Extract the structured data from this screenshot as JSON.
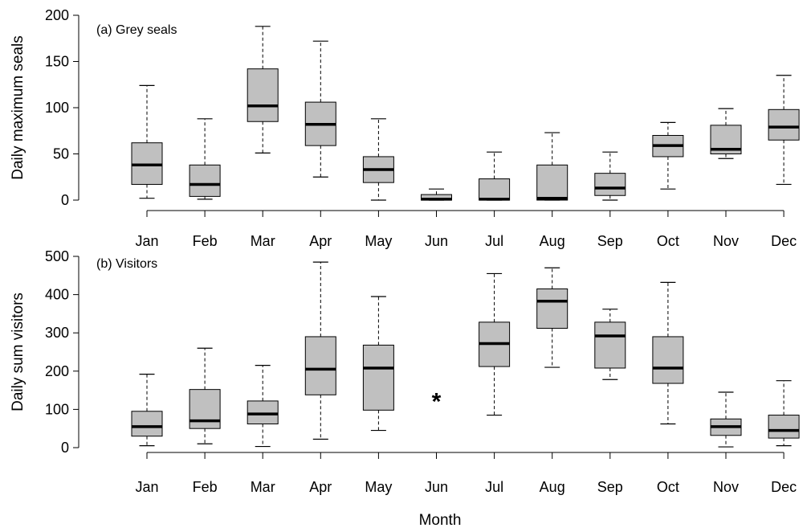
{
  "figure": {
    "xlabel": "Month",
    "colors": {
      "box_fill": "#c0c0c0",
      "stroke": "#000000",
      "background": "#ffffff"
    }
  },
  "chart_data": [
    {
      "type": "boxplot",
      "panel_label": "(a) Grey seals",
      "ylabel": "Daily maximum seals",
      "xlabel": "",
      "ylim": [
        0,
        200
      ],
      "yticks": [
        0,
        50,
        100,
        150,
        200
      ],
      "categories": [
        "Jan",
        "Feb",
        "Mar",
        "Apr",
        "May",
        "Jun",
        "Jul",
        "Aug",
        "Sep",
        "Oct",
        "Nov",
        "Dec"
      ],
      "grid": false,
      "boxes": [
        {
          "whisker_low": 2,
          "q1": 17,
          "median": 38,
          "q3": 62,
          "whisker_high": 124
        },
        {
          "whisker_low": 1,
          "q1": 4,
          "median": 17,
          "q3": 38,
          "whisker_high": 88
        },
        {
          "whisker_low": 51,
          "q1": 85,
          "median": 102,
          "q3": 142,
          "whisker_high": 188
        },
        {
          "whisker_low": 25,
          "q1": 59,
          "median": 82,
          "q3": 106,
          "whisker_high": 172
        },
        {
          "whisker_low": 0,
          "q1": 19,
          "median": 33,
          "q3": 47,
          "whisker_high": 88
        },
        {
          "whisker_low": 0,
          "q1": 0,
          "median": 1,
          "q3": 6,
          "whisker_high": 12
        },
        {
          "whisker_low": 0,
          "q1": 0,
          "median": 1,
          "q3": 23,
          "whisker_high": 52
        },
        {
          "whisker_low": 0,
          "q1": 0,
          "median": 2,
          "q3": 38,
          "whisker_high": 73
        },
        {
          "whisker_low": 0,
          "q1": 5,
          "median": 13,
          "q3": 29,
          "whisker_high": 52
        },
        {
          "whisker_low": 12,
          "q1": 47,
          "median": 59,
          "q3": 70,
          "whisker_high": 84
        },
        {
          "whisker_low": 45,
          "q1": 50,
          "median": 55,
          "q3": 81,
          "whisker_high": 99
        },
        {
          "whisker_low": 17,
          "q1": 65,
          "median": 79,
          "q3": 98,
          "whisker_high": 135
        }
      ]
    },
    {
      "type": "boxplot",
      "panel_label": "(b) Visitors",
      "ylabel": "Daily sum visitors",
      "xlabel": "Month",
      "ylim": [
        0,
        500
      ],
      "yticks": [
        0,
        100,
        200,
        300,
        400,
        500
      ],
      "categories": [
        "Jan",
        "Feb",
        "Mar",
        "Apr",
        "May",
        "Jun",
        "Jul",
        "Aug",
        "Sep",
        "Oct",
        "Nov",
        "Dec"
      ],
      "grid": false,
      "missing_marker": {
        "category": "Jun",
        "symbol": "*",
        "y": 125
      },
      "boxes": [
        {
          "whisker_low": 5,
          "q1": 30,
          "median": 55,
          "q3": 95,
          "whisker_high": 192
        },
        {
          "whisker_low": 10,
          "q1": 50,
          "median": 70,
          "q3": 152,
          "whisker_high": 260
        },
        {
          "whisker_low": 3,
          "q1": 62,
          "median": 88,
          "q3": 122,
          "whisker_high": 215
        },
        {
          "whisker_low": 22,
          "q1": 138,
          "median": 205,
          "q3": 290,
          "whisker_high": 485
        },
        {
          "whisker_low": 45,
          "q1": 98,
          "median": 208,
          "q3": 268,
          "whisker_high": 395
        },
        null,
        {
          "whisker_low": 85,
          "q1": 212,
          "median": 272,
          "q3": 328,
          "whisker_high": 455
        },
        {
          "whisker_low": 210,
          "q1": 312,
          "median": 383,
          "q3": 415,
          "whisker_high": 470
        },
        {
          "whisker_low": 178,
          "q1": 208,
          "median": 292,
          "q3": 328,
          "whisker_high": 362
        },
        {
          "whisker_low": 62,
          "q1": 168,
          "median": 208,
          "q3": 290,
          "whisker_high": 432
        },
        {
          "whisker_low": 2,
          "q1": 32,
          "median": 55,
          "q3": 75,
          "whisker_high": 145
        },
        {
          "whisker_low": 5,
          "q1": 25,
          "median": 45,
          "q3": 85,
          "whisker_high": 175
        }
      ]
    }
  ]
}
